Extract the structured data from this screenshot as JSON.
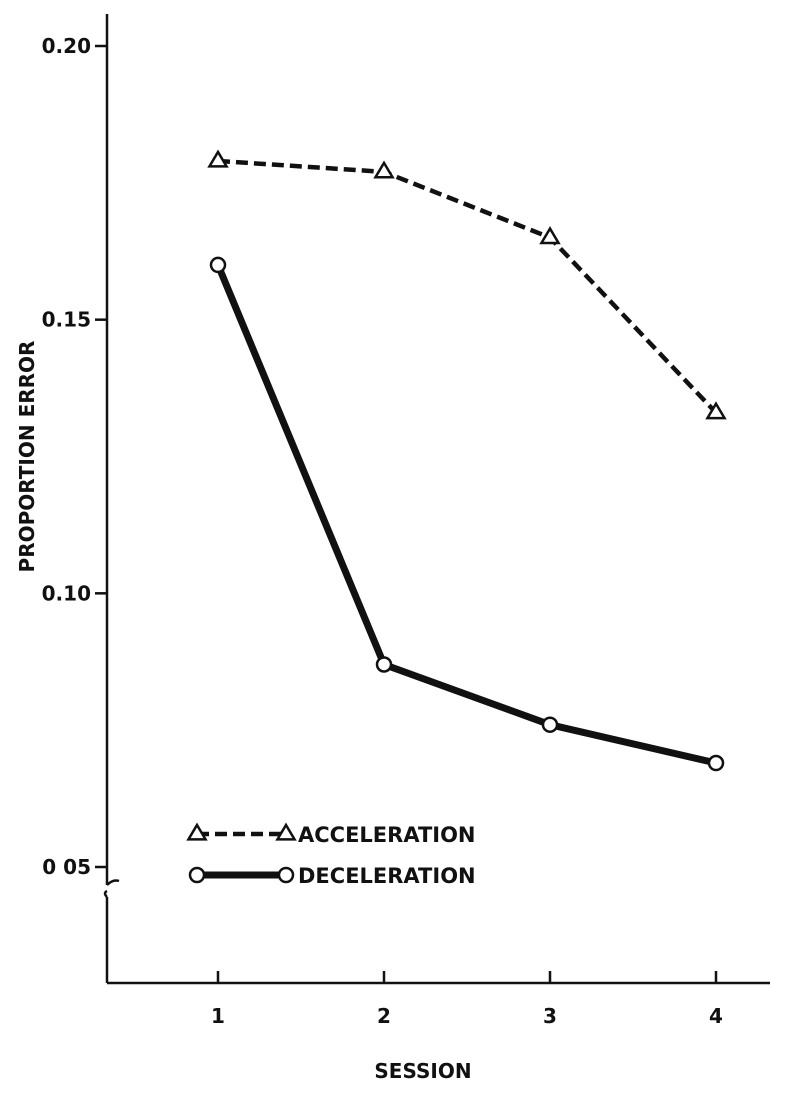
{
  "chart_data": {
    "type": "line",
    "title": "",
    "xlabel": "SESSION",
    "ylabel": "PROPORTION ERROR",
    "x": [
      1,
      2,
      3,
      4
    ],
    "x_tick_labels": [
      "1",
      "2",
      "3",
      "4"
    ],
    "xlim": [
      0.5,
      4.3
    ],
    "ylim": [
      0.05,
      0.2
    ],
    "y_axis_break_below": 0.05,
    "y_ticks": [
      0.05,
      0.1,
      0.15,
      0.2
    ],
    "y_tick_labels": [
      "0 05",
      "0.10",
      "0.15",
      "0.20"
    ],
    "grid": false,
    "legend_position": "bottom-left",
    "series": [
      {
        "name": "ACCELERATION",
        "values": [
          0.179,
          0.177,
          0.165,
          0.133
        ],
        "marker": "triangle",
        "line_style": "dashed",
        "color": "#111111"
      },
      {
        "name": "DECELERATION",
        "values": [
          0.16,
          0.087,
          0.076,
          0.069
        ],
        "marker": "circle",
        "line_style": "solid",
        "color": "#111111"
      }
    ]
  }
}
